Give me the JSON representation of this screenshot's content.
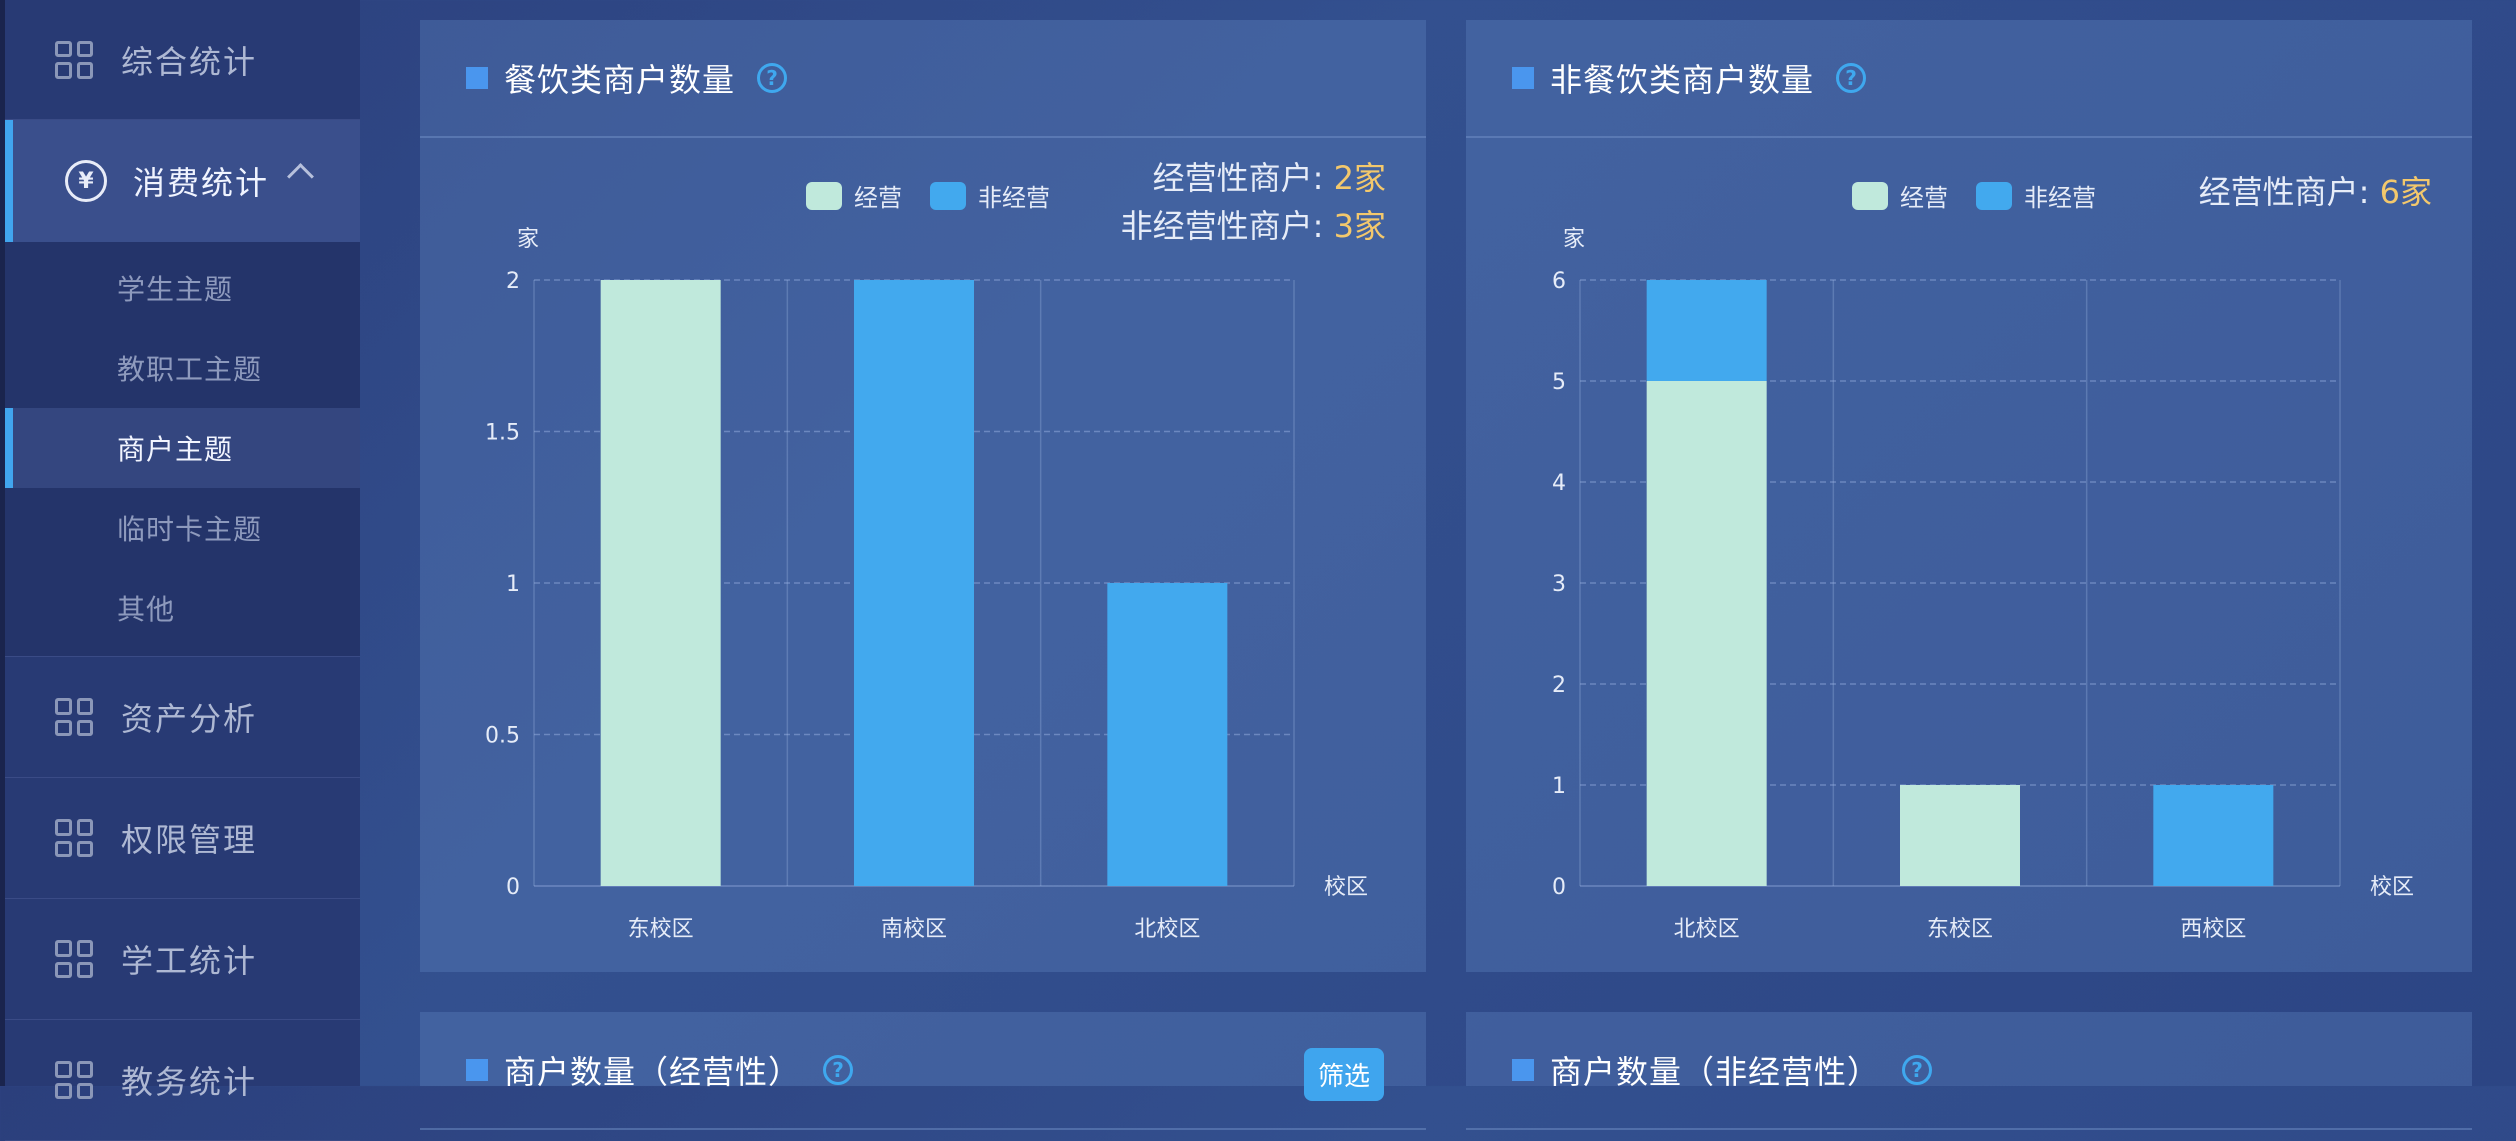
{
  "sidebar": {
    "top_item": "综合统计",
    "active_item": "消费统计",
    "submenu": [
      "学生主题",
      "教职工主题",
      "商户主题",
      "临时卡主题",
      "其他"
    ],
    "active_sub_index": 2,
    "items": [
      "资产分析",
      "权限管理",
      "学工统计",
      "教务统计"
    ]
  },
  "panels": {
    "catering": {
      "title": "餐饮类商户数量",
      "summary_operating_label": "经营性商户: ",
      "summary_operating_value": "2家",
      "summary_non_operating_label": "非经营性商户: ",
      "summary_non_operating_value": "3家"
    },
    "non_catering": {
      "title": "非餐饮类商户数量",
      "summary_operating_label": "经营性商户: ",
      "summary_operating_value": "6家"
    },
    "operating_count": {
      "title": "商户数量（经营性）",
      "filter_label": "筛选"
    },
    "non_operating_count": {
      "title": "商户数量（非经营性）"
    }
  },
  "legend": {
    "operating": "经营",
    "non_operating": "非经营"
  },
  "colors": {
    "operating": "#c0e9dc",
    "non_operating": "#42a9ee",
    "accent": "#f3c86c"
  },
  "chart_data": [
    {
      "type": "bar",
      "stacked": true,
      "title": "",
      "ylabel": "家",
      "xlabel": "校区",
      "categories": [
        "东校区",
        "南校区",
        "北校区"
      ],
      "series": [
        {
          "name": "经营",
          "values": [
            2,
            0,
            0
          ]
        },
        {
          "name": "非经营",
          "values": [
            0,
            2,
            1
          ]
        }
      ],
      "ylim": [
        0,
        2
      ],
      "yticks": [
        0,
        0.5,
        1,
        1.5,
        2
      ],
      "grid": true,
      "legend": "top"
    },
    {
      "type": "bar",
      "stacked": true,
      "title": "",
      "ylabel": "家",
      "xlabel": "校区",
      "categories": [
        "北校区",
        "东校区",
        "西校区"
      ],
      "series": [
        {
          "name": "经营",
          "values": [
            5,
            1,
            0
          ]
        },
        {
          "name": "非经营",
          "values": [
            1,
            0,
            1
          ]
        }
      ],
      "ylim": [
        0,
        6
      ],
      "yticks": [
        0,
        1,
        2,
        3,
        4,
        5,
        6
      ],
      "grid": true,
      "legend": "top"
    }
  ]
}
